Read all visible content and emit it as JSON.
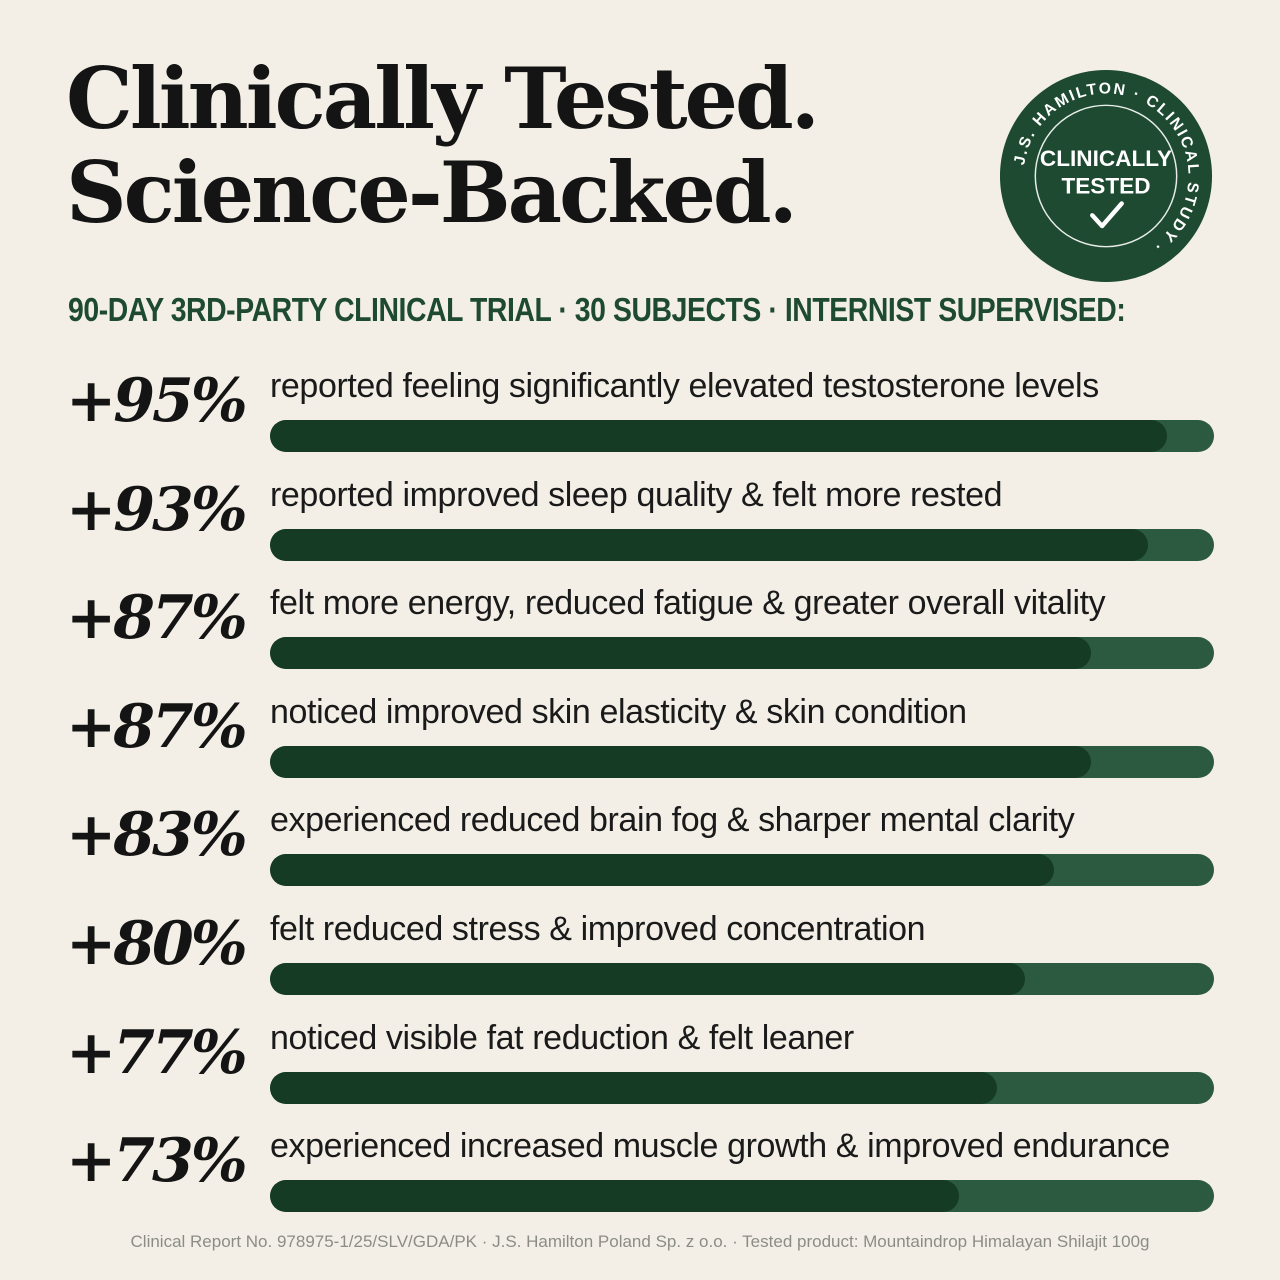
{
  "headline": {
    "line1": "Clinically Tested.",
    "line2": "Science-Backed."
  },
  "seal": {
    "ring_text": "J.S. HAMILTON · CLINICAL STUDY ·",
    "center_line1": "CLINICALLY",
    "center_line2": "TESTED",
    "check_icon": "checkmark-icon",
    "color": "#1d4a30",
    "text_color": "#ffffff"
  },
  "subhead": "90-DAY 3RD-PARTY CLINICAL TRIAL · 30 SUBJECTS · INTERNIST SUPERVISED:",
  "chart_data": {
    "type": "bar",
    "orientation": "horizontal",
    "xlim": [
      0,
      100
    ],
    "grid": false,
    "colors": {
      "fill": "#153b25",
      "track": "#2c5a40"
    },
    "value_labels": [
      "+95%",
      "+93%",
      "+87%",
      "+87%",
      "+83%",
      "+80%",
      "+77%",
      "+73%"
    ],
    "categories": [
      "reported feeling significantly elevated testosterone levels",
      "reported improved sleep quality & felt more rested",
      "felt more energy, reduced fatigue & greater overall vitality",
      "noticed improved skin elasticity & skin condition",
      "experienced reduced brain fog & sharper mental clarity",
      "felt reduced stress & improved concentration",
      "noticed visible fat reduction & felt leaner",
      "experienced increased muscle growth & improved endurance"
    ],
    "values": [
      95,
      93,
      87,
      87,
      83,
      80,
      77,
      73
    ]
  },
  "footer": "Clinical Report No. 978975-1/25/SLV/GDA/PK  ·  J.S. Hamilton Poland Sp. z o.o.  ·  Tested product: Mountaindrop Himalayan Shilajit 100g"
}
